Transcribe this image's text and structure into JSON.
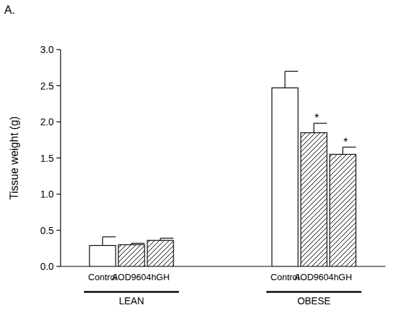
{
  "chart_data": {
    "type": "bar",
    "title": "A.",
    "y_label": "Tissue weight (g)",
    "categories": [
      "Control",
      "AOD9604",
      "hGH",
      "Control",
      "AOD9604",
      "hGH"
    ],
    "groups": [
      {
        "label": "LEAN",
        "count": 3
      },
      {
        "label": "OBESE",
        "count": 3
      }
    ],
    "values": [
      0.29,
      0.3,
      0.36,
      2.47,
      1.85,
      1.55
    ],
    "errors": [
      0.12,
      0.02,
      0.03,
      0.23,
      0.13,
      0.1
    ],
    "significance": [
      null,
      null,
      null,
      null,
      "*",
      "*"
    ],
    "colors": [
      "#ffffff",
      "#000000",
      "#000000",
      "#ffffff",
      "#000000",
      "#000000"
    ],
    "ylim": [
      0,
      3
    ],
    "yticks": [
      {
        "value": 0,
        "label": "0.0"
      },
      {
        "value": 0.5,
        "label": "0.5"
      },
      {
        "value": 1,
        "label": "1.0"
      },
      {
        "value": 1.5,
        "label": "1.5"
      },
      {
        "value": 2,
        "label": "2.0"
      },
      {
        "value": 2.5,
        "label": "2.5"
      },
      {
        "value": 3,
        "label": "3.0"
      }
    ],
    "grid": false
  }
}
